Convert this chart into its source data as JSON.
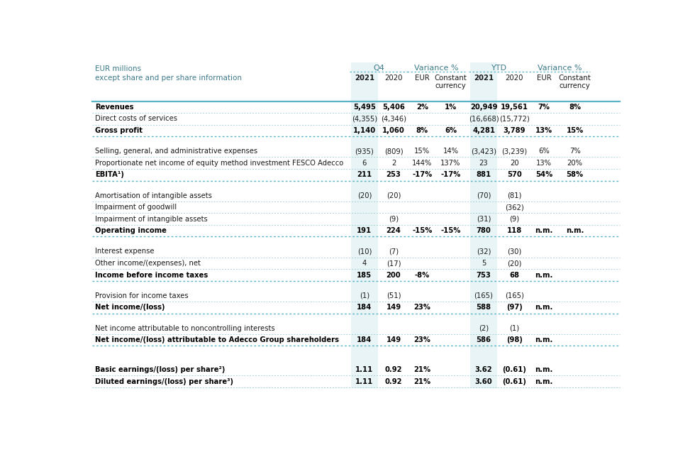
{
  "header_line1": "EUR millions",
  "header_line2": "except share and per share information",
  "bg_color": "#ffffff",
  "header_text_color": "#3d7a8a",
  "cell_text_color": "#1a1a1a",
  "bold_text_color": "#000000",
  "shaded_col_color": "#e8f4f5",
  "border_color": "#5ab4c5",
  "thin_border_color": "#a8d5dc",
  "group_headers": [
    "Q4",
    "Variance %",
    "YTD",
    "Variance %"
  ],
  "sub_headers": [
    "2021",
    "2020",
    "EUR",
    "Constant\ncurrency",
    "2021",
    "2020",
    "EUR",
    "Constant\ncurrency"
  ],
  "rows": [
    {
      "label": "Revenues",
      "bold": true,
      "q4_2021": "5,495",
      "q4_2020": "5,406",
      "var_eur": "2%",
      "var_cc": "1%",
      "ytd_2021": "20,949",
      "ytd_2020": "19,561",
      "ytd_eur": "7%",
      "ytd_cc": "8%",
      "spacer": false,
      "thick_below": false
    },
    {
      "label": "Direct costs of services",
      "bold": false,
      "q4_2021": "(4,355)",
      "q4_2020": "(4,346)",
      "var_eur": "",
      "var_cc": "",
      "ytd_2021": "(16,668)",
      "ytd_2020": "(15,772)",
      "ytd_eur": "",
      "ytd_cc": "",
      "spacer": false,
      "thick_below": false
    },
    {
      "label": "Gross profit",
      "bold": true,
      "q4_2021": "1,140",
      "q4_2020": "1,060",
      "var_eur": "8%",
      "var_cc": "6%",
      "ytd_2021": "4,281",
      "ytd_2020": "3,789",
      "ytd_eur": "13%",
      "ytd_cc": "15%",
      "spacer": false,
      "thick_below": true
    },
    {
      "label": "",
      "bold": false,
      "q4_2021": "",
      "q4_2020": "",
      "var_eur": "",
      "var_cc": "",
      "ytd_2021": "",
      "ytd_2020": "",
      "ytd_eur": "",
      "ytd_cc": "",
      "spacer": true,
      "thick_below": false
    },
    {
      "label": "Selling, general, and administrative expenses",
      "bold": false,
      "q4_2021": "(935)",
      "q4_2020": "(809)",
      "var_eur": "15%",
      "var_cc": "14%",
      "ytd_2021": "(3,423)",
      "ytd_2020": "(3,239)",
      "ytd_eur": "6%",
      "ytd_cc": "7%",
      "spacer": false,
      "thick_below": false
    },
    {
      "label": "Proportionate net income of equity method investment FESCO Adecco",
      "bold": false,
      "q4_2021": "6",
      "q4_2020": "2",
      "var_eur": "144%",
      "var_cc": "137%",
      "ytd_2021": "23",
      "ytd_2020": "20",
      "ytd_eur": "13%",
      "ytd_cc": "20%",
      "spacer": false,
      "thick_below": false
    },
    {
      "label": "EBITA¹)",
      "bold": true,
      "q4_2021": "211",
      "q4_2020": "253",
      "var_eur": "-17%",
      "var_cc": "-17%",
      "ytd_2021": "881",
      "ytd_2020": "570",
      "ytd_eur": "54%",
      "ytd_cc": "58%",
      "spacer": false,
      "thick_below": true
    },
    {
      "label": "",
      "bold": false,
      "q4_2021": "",
      "q4_2020": "",
      "var_eur": "",
      "var_cc": "",
      "ytd_2021": "",
      "ytd_2020": "",
      "ytd_eur": "",
      "ytd_cc": "",
      "spacer": true,
      "thick_below": false
    },
    {
      "label": "Amortisation of intangible assets",
      "bold": false,
      "q4_2021": "(20)",
      "q4_2020": "(20)",
      "var_eur": "",
      "var_cc": "",
      "ytd_2021": "(70)",
      "ytd_2020": "(81)",
      "ytd_eur": "",
      "ytd_cc": "",
      "spacer": false,
      "thick_below": false
    },
    {
      "label": "Impairment of goodwill",
      "bold": false,
      "q4_2021": "",
      "q4_2020": "",
      "var_eur": "",
      "var_cc": "",
      "ytd_2021": "",
      "ytd_2020": "(362)",
      "ytd_eur": "",
      "ytd_cc": "",
      "spacer": false,
      "thick_below": false
    },
    {
      "label": "Impairment of intangible assets",
      "bold": false,
      "q4_2021": "",
      "q4_2020": "(9)",
      "var_eur": "",
      "var_cc": "",
      "ytd_2021": "(31)",
      "ytd_2020": "(9)",
      "ytd_eur": "",
      "ytd_cc": "",
      "spacer": false,
      "thick_below": false
    },
    {
      "label": "Operating income",
      "bold": true,
      "q4_2021": "191",
      "q4_2020": "224",
      "var_eur": "-15%",
      "var_cc": "-15%",
      "ytd_2021": "780",
      "ytd_2020": "118",
      "ytd_eur": "n.m.",
      "ytd_cc": "n.m.",
      "spacer": false,
      "thick_below": true
    },
    {
      "label": "",
      "bold": false,
      "q4_2021": "",
      "q4_2020": "",
      "var_eur": "",
      "var_cc": "",
      "ytd_2021": "",
      "ytd_2020": "",
      "ytd_eur": "",
      "ytd_cc": "",
      "spacer": true,
      "thick_below": false
    },
    {
      "label": "Interest expense",
      "bold": false,
      "q4_2021": "(10)",
      "q4_2020": "(7)",
      "var_eur": "",
      "var_cc": "",
      "ytd_2021": "(32)",
      "ytd_2020": "(30)",
      "ytd_eur": "",
      "ytd_cc": "",
      "spacer": false,
      "thick_below": false
    },
    {
      "label": "Other income/(expenses), net",
      "bold": false,
      "q4_2021": "4",
      "q4_2020": "(17)",
      "var_eur": "",
      "var_cc": "",
      "ytd_2021": "5",
      "ytd_2020": "(20)",
      "ytd_eur": "",
      "ytd_cc": "",
      "spacer": false,
      "thick_below": false
    },
    {
      "label": "Income before income taxes",
      "bold": true,
      "q4_2021": "185",
      "q4_2020": "200",
      "var_eur": "-8%",
      "var_cc": "",
      "ytd_2021": "753",
      "ytd_2020": "68",
      "ytd_eur": "n.m.",
      "ytd_cc": "",
      "spacer": false,
      "thick_below": true
    },
    {
      "label": "",
      "bold": false,
      "q4_2021": "",
      "q4_2020": "",
      "var_eur": "",
      "var_cc": "",
      "ytd_2021": "",
      "ytd_2020": "",
      "ytd_eur": "",
      "ytd_cc": "",
      "spacer": true,
      "thick_below": false
    },
    {
      "label": "Provision for income taxes",
      "bold": false,
      "q4_2021": "(1)",
      "q4_2020": "(51)",
      "var_eur": "",
      "var_cc": "",
      "ytd_2021": "(165)",
      "ytd_2020": "(165)",
      "ytd_eur": "",
      "ytd_cc": "",
      "spacer": false,
      "thick_below": false
    },
    {
      "label": "Net income/(loss)",
      "bold": true,
      "q4_2021": "184",
      "q4_2020": "149",
      "var_eur": "23%",
      "var_cc": "",
      "ytd_2021": "588",
      "ytd_2020": "(97)",
      "ytd_eur": "n.m.",
      "ytd_cc": "",
      "spacer": false,
      "thick_below": true
    },
    {
      "label": "",
      "bold": false,
      "q4_2021": "",
      "q4_2020": "",
      "var_eur": "",
      "var_cc": "",
      "ytd_2021": "",
      "ytd_2020": "",
      "ytd_eur": "",
      "ytd_cc": "",
      "spacer": true,
      "thick_below": false
    },
    {
      "label": "Net income attributable to noncontrolling interests",
      "bold": false,
      "q4_2021": "",
      "q4_2020": "",
      "var_eur": "",
      "var_cc": "",
      "ytd_2021": "(2)",
      "ytd_2020": "(1)",
      "ytd_eur": "",
      "ytd_cc": "",
      "spacer": false,
      "thick_below": false
    },
    {
      "label": "Net income/(loss) attributable to Adecco Group shareholders",
      "bold": true,
      "q4_2021": "184",
      "q4_2020": "149",
      "var_eur": "23%",
      "var_cc": "",
      "ytd_2021": "586",
      "ytd_2020": "(98)",
      "ytd_eur": "n.m.",
      "ytd_cc": "",
      "spacer": false,
      "thick_below": true
    },
    {
      "label": "",
      "bold": false,
      "q4_2021": "",
      "q4_2020": "",
      "var_eur": "",
      "var_cc": "",
      "ytd_2021": "",
      "ytd_2020": "",
      "ytd_eur": "",
      "ytd_cc": "",
      "spacer": true,
      "thick_below": false
    },
    {
      "label": "",
      "bold": false,
      "q4_2021": "",
      "q4_2020": "",
      "var_eur": "",
      "var_cc": "",
      "ytd_2021": "",
      "ytd_2020": "",
      "ytd_eur": "",
      "ytd_cc": "",
      "spacer": true,
      "thick_below": false
    },
    {
      "label": "Basic earnings/(loss) per share²)",
      "bold": true,
      "q4_2021": "1.11",
      "q4_2020": "0.92",
      "var_eur": "21%",
      "var_cc": "",
      "ytd_2021": "3.62",
      "ytd_2020": "(0.61)",
      "ytd_eur": "n.m.",
      "ytd_cc": "",
      "spacer": false,
      "thick_below": false
    },
    {
      "label": "Diluted earnings/(loss) per share³)",
      "bold": true,
      "q4_2021": "1.11",
      "q4_2020": "0.92",
      "var_eur": "21%",
      "var_cc": "",
      "ytd_2021": "3.60",
      "ytd_2020": "(0.61)",
      "ytd_eur": "n.m.",
      "ytd_cc": "",
      "spacer": false,
      "thick_below": false
    }
  ]
}
